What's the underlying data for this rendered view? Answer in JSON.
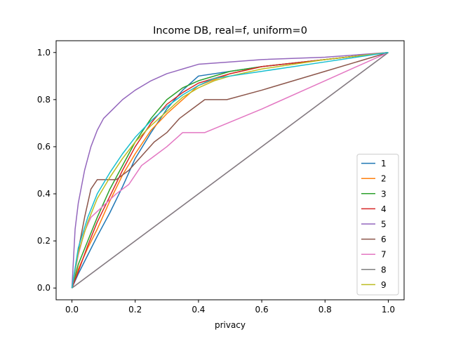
{
  "chart_data": {
    "type": "line",
    "title": "Income DB, real=f, uniform=0",
    "xlabel": "privacy",
    "ylabel": "",
    "xlim": [
      -0.05,
      1.05
    ],
    "ylim": [
      -0.05,
      1.05
    ],
    "x_ticks": [
      "0.0",
      "0.2",
      "0.4",
      "0.6",
      "0.8",
      "1.0"
    ],
    "y_ticks": [
      "0.0",
      "0.2",
      "0.4",
      "0.6",
      "0.8",
      "1.0"
    ],
    "grid": false,
    "legend_position": "lower-right",
    "series": [
      {
        "name": "1",
        "color": "#1f77b4",
        "x": [
          0,
          0.02,
          0.05,
          0.08,
          0.12,
          0.16,
          0.2,
          0.25,
          0.3,
          0.35,
          0.4,
          0.5,
          0.6,
          0.8,
          1.0
        ],
        "y": [
          0,
          0.06,
          0.14,
          0.22,
          0.32,
          0.43,
          0.55,
          0.66,
          0.76,
          0.84,
          0.9,
          0.92,
          0.94,
          0.97,
          1.0
        ]
      },
      {
        "name": "2",
        "color": "#ff7f0e",
        "x": [
          0,
          0.02,
          0.05,
          0.08,
          0.12,
          0.16,
          0.2,
          0.25,
          0.3,
          0.35,
          0.4,
          0.5,
          0.6,
          0.8,
          1.0
        ],
        "y": [
          0,
          0.08,
          0.17,
          0.25,
          0.37,
          0.48,
          0.57,
          0.67,
          0.74,
          0.8,
          0.86,
          0.91,
          0.94,
          0.97,
          1.0
        ]
      },
      {
        "name": "3",
        "color": "#2ca02c",
        "x": [
          0,
          0.02,
          0.05,
          0.08,
          0.12,
          0.16,
          0.2,
          0.25,
          0.3,
          0.35,
          0.4,
          0.5,
          0.6,
          0.8,
          1.0
        ],
        "y": [
          0,
          0.1,
          0.2,
          0.3,
          0.42,
          0.52,
          0.62,
          0.72,
          0.8,
          0.85,
          0.88,
          0.92,
          0.94,
          0.97,
          1.0
        ]
      },
      {
        "name": "4",
        "color": "#d62728",
        "x": [
          0,
          0.02,
          0.05,
          0.08,
          0.12,
          0.16,
          0.2,
          0.25,
          0.3,
          0.35,
          0.4,
          0.5,
          0.6,
          0.8,
          1.0
        ],
        "y": [
          0,
          0.07,
          0.18,
          0.28,
          0.39,
          0.5,
          0.6,
          0.7,
          0.78,
          0.83,
          0.87,
          0.91,
          0.94,
          0.97,
          1.0
        ]
      },
      {
        "name": "5",
        "color": "#9467bd",
        "x": [
          0,
          0.01,
          0.02,
          0.04,
          0.06,
          0.08,
          0.1,
          0.13,
          0.16,
          0.2,
          0.25,
          0.3,
          0.35,
          0.4,
          0.5,
          0.6,
          0.8,
          1.0
        ],
        "y": [
          0,
          0.25,
          0.36,
          0.5,
          0.6,
          0.67,
          0.72,
          0.76,
          0.8,
          0.84,
          0.88,
          0.91,
          0.93,
          0.95,
          0.96,
          0.97,
          0.98,
          1.0
        ]
      },
      {
        "name": "6",
        "color": "#8c564b",
        "x": [
          0,
          0.02,
          0.04,
          0.06,
          0.08,
          0.14,
          0.18,
          0.22,
          0.26,
          0.3,
          0.34,
          0.38,
          0.42,
          0.49,
          0.6,
          0.8,
          1.0
        ],
        "y": [
          0,
          0.16,
          0.3,
          0.42,
          0.46,
          0.46,
          0.5,
          0.56,
          0.62,
          0.66,
          0.72,
          0.76,
          0.8,
          0.8,
          0.84,
          0.92,
          1.0
        ]
      },
      {
        "name": "7",
        "color": "#e377c2",
        "x": [
          0,
          0.02,
          0.04,
          0.06,
          0.1,
          0.14,
          0.18,
          0.22,
          0.26,
          0.3,
          0.35,
          0.42,
          0.6,
          0.8,
          1.0
        ],
        "y": [
          0,
          0.14,
          0.24,
          0.3,
          0.35,
          0.4,
          0.44,
          0.52,
          0.56,
          0.6,
          0.66,
          0.66,
          0.76,
          0.88,
          1.0
        ]
      },
      {
        "name": "8",
        "color": "#7f7f7f",
        "x": [
          0,
          1
        ],
        "y": [
          0,
          1
        ]
      },
      {
        "name": "9",
        "color": "#bcbd22",
        "x": [
          0,
          0.02,
          0.05,
          0.08,
          0.12,
          0.16,
          0.2,
          0.25,
          0.3,
          0.35,
          0.4,
          0.45,
          0.5,
          0.6,
          0.8,
          1.0
        ],
        "y": [
          0,
          0.15,
          0.28,
          0.38,
          0.47,
          0.55,
          0.62,
          0.69,
          0.75,
          0.81,
          0.85,
          0.88,
          0.9,
          0.93,
          0.97,
          1.0
        ]
      },
      {
        "name": "",
        "color": "#17becf",
        "x": [
          0,
          0.02,
          0.05,
          0.08,
          0.12,
          0.16,
          0.2,
          0.25,
          0.3,
          0.35,
          0.4,
          0.45,
          0.5,
          0.6,
          0.8,
          1.0
        ],
        "y": [
          0,
          0.17,
          0.3,
          0.4,
          0.49,
          0.57,
          0.64,
          0.71,
          0.77,
          0.82,
          0.86,
          0.89,
          0.9,
          0.92,
          0.96,
          1.0
        ]
      }
    ],
    "diagonal": {
      "color": "#e377c2",
      "x": [
        0,
        1
      ],
      "y": [
        0,
        1
      ]
    }
  }
}
